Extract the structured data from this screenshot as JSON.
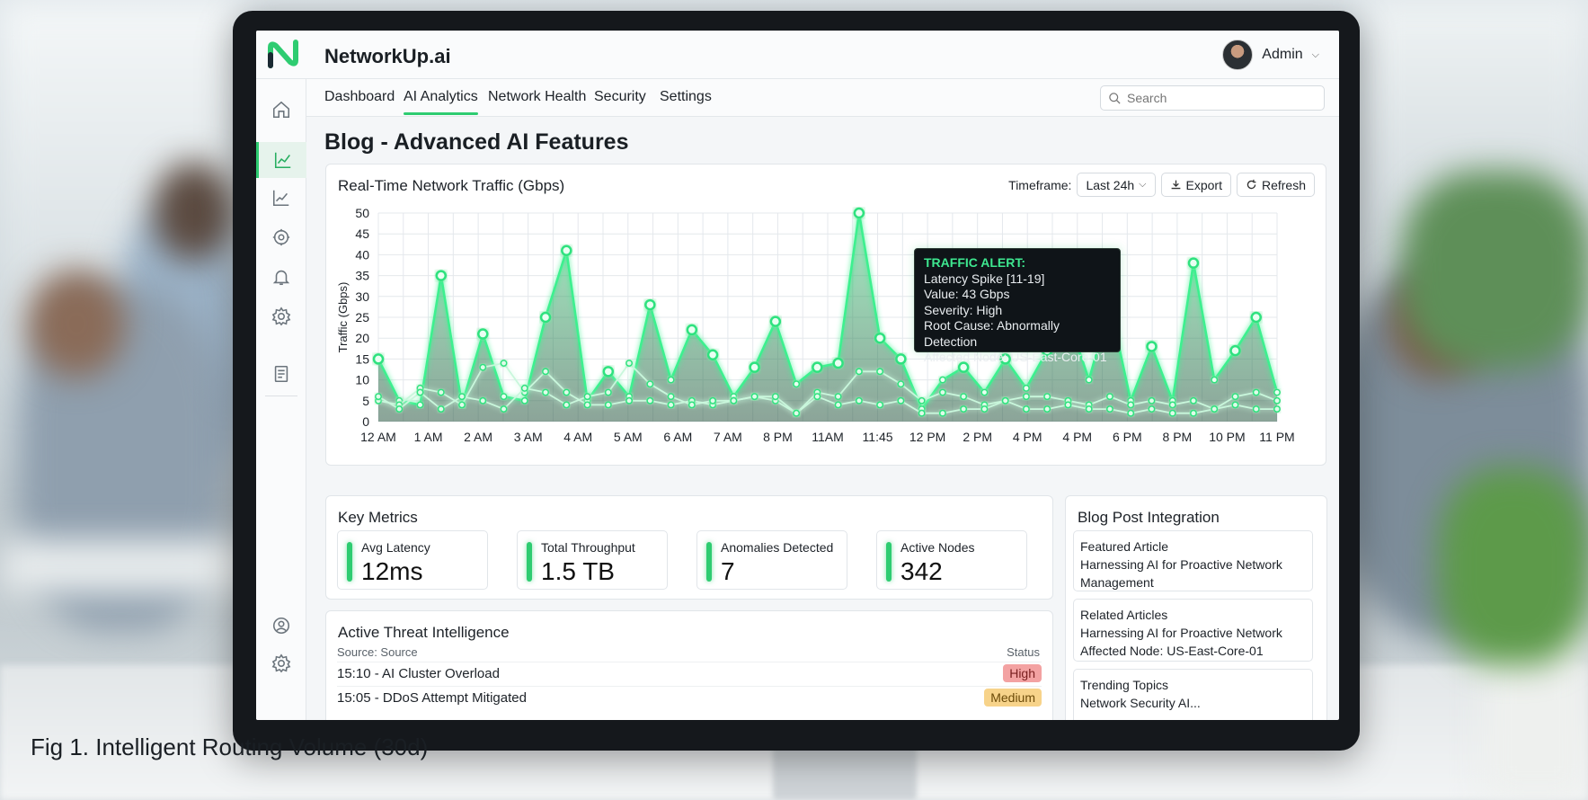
{
  "app": {
    "brand": "NetworkUp.ai",
    "user": "Admin"
  },
  "nav": {
    "tabs": [
      {
        "label": "Dashboard",
        "active": false
      },
      {
        "label": "AI Analytics",
        "active": true
      },
      {
        "label": "Network Health",
        "active": false
      },
      {
        "label": "Security",
        "active": false
      },
      {
        "label": "Settings",
        "active": false
      }
    ]
  },
  "search": {
    "placeholder": "Search",
    "value": ""
  },
  "sidebar": {
    "icons": [
      "home-icon",
      "analytics-icon",
      "trend-icon",
      "target-icon",
      "bell-icon",
      "gear-icon",
      "document-icon",
      "user-settings-icon",
      "gear-icon"
    ],
    "active": "analytics-icon"
  },
  "page": {
    "title": "Blog - Advanced AI Features"
  },
  "chart_card": {
    "title": "Real-Time Network Traffic (Gbps)",
    "timeframe_label": "Timeframe:",
    "timeframe_value": "Last 24h",
    "export_label": "Export",
    "refresh_label": "Refresh"
  },
  "chart_data": {
    "type": "line",
    "title": "Real-Time Network Traffic (Gbps)",
    "xlabel": "",
    "ylabel": "Traffic (Gbps)",
    "ylim": [
      0,
      50
    ],
    "yticks": [
      0,
      5,
      10,
      15,
      20,
      25,
      30,
      35,
      40,
      45,
      50
    ],
    "x_ticks": [
      "12 AM",
      "1 AM",
      "2 AM",
      "3 AM",
      "4 AM",
      "5 AM",
      "6 AM",
      "7 AM",
      "8 PM",
      "11AM",
      "11:45",
      "12 PM",
      "2 PM",
      "4 PM",
      "4 PM",
      "6 PM",
      "8 PM",
      "10 PM",
      "11 PM"
    ],
    "grid": true,
    "series": [
      {
        "values": [
          15,
          5,
          4,
          35,
          4,
          21,
          6,
          5,
          25,
          41,
          5,
          12,
          6,
          28,
          10,
          22,
          16,
          6,
          13,
          24,
          9,
          13,
          14,
          50,
          20,
          15,
          3,
          10,
          13,
          7,
          15,
          8,
          17,
          25,
          10,
          28,
          5,
          18,
          5,
          38,
          10,
          17,
          25,
          7
        ]
      },
      {
        "values": [
          5,
          4,
          8,
          7,
          4,
          13,
          14,
          7,
          12,
          7,
          4,
          4,
          5,
          5,
          4,
          5,
          4,
          5,
          6,
          5,
          2,
          7,
          6,
          12,
          12,
          9,
          5,
          7,
          6,
          4,
          5,
          6,
          6,
          5,
          4,
          6,
          4,
          5,
          4,
          5,
          3,
          6,
          7,
          5
        ]
      },
      {
        "values": [
          6,
          3,
          7,
          3,
          6,
          5,
          3,
          8,
          7,
          4,
          6,
          7,
          14,
          9,
          6,
          4,
          5,
          5,
          6,
          6,
          2,
          6,
          4,
          5,
          4,
          5,
          2,
          2,
          3,
          3,
          5,
          3,
          3,
          4,
          3,
          3,
          2,
          3,
          2,
          2,
          3,
          4,
          3,
          3
        ]
      }
    ],
    "tooltip": {
      "title": "TRAFFIC ALERT:",
      "lines": [
        "Latency Spike [11-19]",
        "Value:   43 Gbps",
        "Severity: High",
        "Root Cause: Abnormally Detection",
        "Affected Node: US-East-Core-01"
      ]
    }
  },
  "metrics": {
    "title": "Key Metrics",
    "items": [
      {
        "label": "Avg Latency",
        "value": "12ms"
      },
      {
        "label": "Total Throughput",
        "value": "1.5 TB"
      },
      {
        "label": "Anomalies Detected",
        "value": "7"
      },
      {
        "label": "Active Nodes",
        "value": "342"
      }
    ]
  },
  "threats": {
    "title": "Active Threat Intelligence",
    "source_header": "Source: Source",
    "status_header": "Status",
    "rows": [
      {
        "text": "15:10 - AI Cluster Overload",
        "status": "High"
      },
      {
        "text": "15:05 - DDoS Attempt Mitigated",
        "status": "Medium"
      }
    ]
  },
  "blog": {
    "title": "Blog Post Integration",
    "items": [
      {
        "heading": "Featured Article",
        "body": "Harnessing AI for Proactive Network Management"
      },
      {
        "heading": "Related Articles",
        "body": "Harnessing AI for Proactive Network Affected Node: US-East-Core-01"
      },
      {
        "heading": "Trending Topics",
        "body": "Network Security AI..."
      }
    ]
  },
  "caption": "Fig 1. Intelligent Routing Volume (30d)",
  "colors": {
    "accent": "#2ecc71",
    "line_glow": "#3ef08f",
    "high": "#f3a2a2",
    "medium": "#f7d38a"
  }
}
